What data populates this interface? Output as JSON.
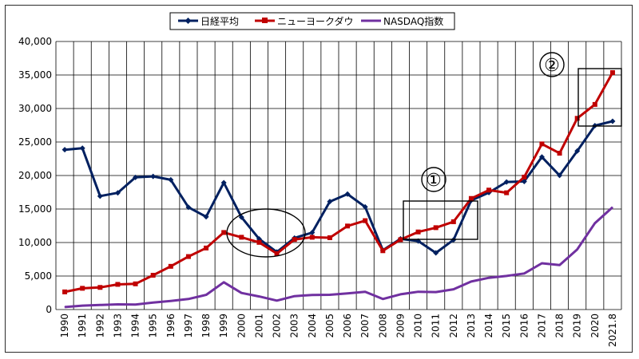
{
  "chart_data": {
    "type": "line",
    "categories": [
      "1990",
      "1991",
      "1992",
      "1993",
      "1994",
      "1995",
      "1996",
      "1997",
      "1998",
      "1999",
      "2000",
      "2001",
      "2002",
      "2003",
      "2004",
      "2005",
      "2006",
      "2007",
      "2008",
      "2009",
      "2010",
      "2011",
      "2012",
      "2013",
      "2014",
      "2015",
      "2016",
      "2017",
      "2018",
      "2019",
      "2020",
      "2021.8"
    ],
    "ylim": [
      0,
      40000
    ],
    "yticks": [
      "0",
      "5,000",
      "10,000",
      "15,000",
      "20,000",
      "25,000",
      "30,000",
      "35,000",
      "40,000"
    ],
    "grid": true,
    "legend_position": "top-center",
    "series": [
      {
        "name": "日経平均",
        "color": "#002060",
        "values": [
          23849,
          24070,
          16925,
          17417,
          19723,
          19868,
          19361,
          15259,
          13842,
          18934,
          13786,
          10543,
          8579,
          10677,
          11489,
          16111,
          17226,
          15308,
          8860,
          10546,
          10229,
          8455,
          10395,
          16291,
          17451,
          19034,
          19114,
          22765,
          20015,
          23657,
          27444,
          28090
        ]
      },
      {
        "name": "ニューヨークダウ",
        "color": "#c00000",
        "values": [
          2634,
          3169,
          3301,
          3754,
          3834,
          5117,
          6448,
          7908,
          9181,
          11497,
          10787,
          10022,
          8342,
          10454,
          10783,
          10718,
          12463,
          13265,
          8776,
          10428,
          11578,
          12218,
          13104,
          16577,
          17823,
          17425,
          19763,
          24719,
          23327,
          28538,
          30606,
          35360
        ]
      },
      {
        "name": "NASDAQ指数",
        "color": "#7030a0",
        "values": [
          374,
          586,
          677,
          777,
          752,
          1052,
          1291,
          1570,
          2193,
          4069,
          2471,
          1950,
          1336,
          2003,
          2175,
          2205,
          2415,
          2652,
          1577,
          2269,
          2653,
          2605,
          3020,
          4177,
          4736,
          5007,
          5383,
          6903,
          6635,
          8973,
          12888,
          15259
        ]
      }
    ],
    "annotations": [
      {
        "label": "①"
      },
      {
        "label": "②"
      }
    ]
  }
}
